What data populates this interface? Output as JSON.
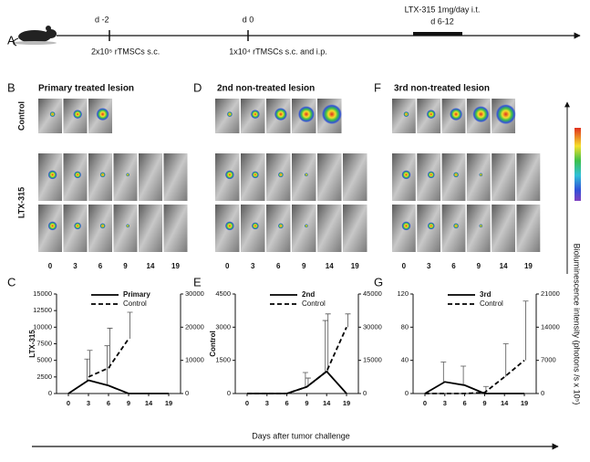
{
  "panel_labels": [
    "A",
    "B",
    "C",
    "D",
    "E",
    "F",
    "G"
  ],
  "timeline": {
    "events": [
      {
        "day": "d -2",
        "note": "2x10⁵ rTMSCs s.c."
      },
      {
        "day": "d 0",
        "note": "1x10⁴ rTMSCs s.c. and i.p."
      },
      {
        "day": "d 6-12",
        "note": "LTX-315 1mg/day i.t."
      }
    ]
  },
  "imaging": {
    "row_labels": [
      "Control",
      "LTX-315"
    ],
    "panels": [
      {
        "title": "Primary treated lesion",
        "days": [
          "0",
          "3",
          "6",
          "9",
          "14",
          "19"
        ]
      },
      {
        "title": "2nd non-treated lesion",
        "days": [
          "0",
          "3",
          "6",
          "9",
          "14",
          "19"
        ]
      },
      {
        "title": "3rd non-treated lesion",
        "days": [
          "0",
          "3",
          "6",
          "9",
          "14",
          "19"
        ]
      }
    ],
    "colorbar_label": "Bioluminescence intensity (photons /s x 10⁵)"
  },
  "x_axis_label": "Days after tumor challenge",
  "chart_data": [
    {
      "type": "line",
      "categories": [
        "0",
        "3",
        "6",
        "9",
        "14",
        "19"
      ],
      "ylim": [
        0,
        15000
      ],
      "yticks": [
        0,
        2500,
        5000,
        7500,
        10000,
        12500,
        15000
      ],
      "y2lim": [
        0,
        30000
      ],
      "y2ticks": [
        0,
        10000,
        20000,
        30000
      ],
      "ylabel": "LTX-315",
      "y2label": "Control",
      "legend": "upper left",
      "series": [
        {
          "name": "Primary",
          "color": "#000000",
          "line_style": "solid",
          "values": [
            0,
            2000,
            1200,
            0,
            0,
            0
          ],
          "errors": [
            null,
            3200,
            6000,
            null,
            null,
            null
          ]
        },
        {
          "name": "Control",
          "color": "#000000",
          "line_style": "dashed",
          "axis": "y2",
          "values": [
            null,
            5000,
            7700,
            16500,
            null,
            null
          ],
          "errors": [
            null,
            8000,
            12000,
            8000,
            null,
            null
          ]
        }
      ]
    },
    {
      "type": "line",
      "categories": [
        "0",
        "3",
        "6",
        "9",
        "14",
        "19"
      ],
      "ylim": [
        0,
        4500
      ],
      "yticks": [
        0,
        1500,
        3000,
        4500
      ],
      "y2lim": [
        0,
        45000
      ],
      "y2ticks": [
        0,
        15000,
        30000,
        45000
      ],
      "legend": "upper left",
      "series": [
        {
          "name": "2nd",
          "color": "#000000",
          "line_style": "solid",
          "values": [
            0,
            0,
            0,
            300,
            1000,
            0
          ],
          "errors": [
            null,
            null,
            null,
            650,
            2300,
            null
          ]
        },
        {
          "name": "Control",
          "color": "#000000",
          "line_style": "dashed",
          "axis": "y2",
          "values": [
            0,
            0,
            0,
            3000,
            10000,
            30000
          ],
          "errors": [
            null,
            null,
            null,
            4000,
            26000,
            6000
          ]
        }
      ]
    },
    {
      "type": "line",
      "categories": [
        "0",
        "3",
        "6",
        "9",
        "14",
        "19"
      ],
      "ylim": [
        0,
        120
      ],
      "yticks": [
        0,
        40,
        80,
        120
      ],
      "y2lim": [
        0,
        21000
      ],
      "y2ticks": [
        0,
        7000,
        14000,
        21000
      ],
      "legend": "upper left",
      "series": [
        {
          "name": "3rd",
          "color": "#000000",
          "line_style": "solid",
          "values": [
            0,
            14,
            10,
            0,
            0,
            0
          ],
          "errors": [
            null,
            24,
            23,
            null,
            null,
            null
          ]
        },
        {
          "name": "Control",
          "color": "#000000",
          "line_style": "dashed",
          "axis": "y2",
          "values": [
            0,
            0,
            0,
            200,
            3500,
            7000
          ],
          "errors": [
            null,
            null,
            null,
            1300,
            7000,
            12500
          ]
        }
      ]
    }
  ]
}
